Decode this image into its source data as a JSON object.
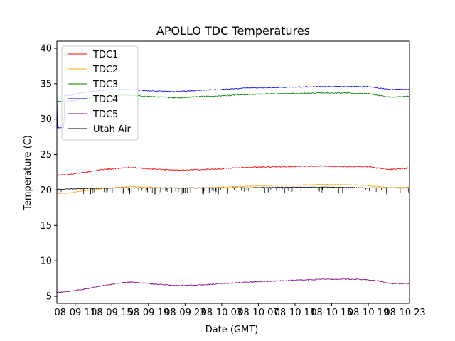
{
  "chart_data": {
    "type": "line",
    "title": "APOLLO TDC Temperatures",
    "xlabel": "Date (GMT)",
    "ylabel": "Temperature (C)",
    "xlim": [
      0,
      38.5
    ],
    "ylim": [
      4,
      41
    ],
    "x_tick_values": [
      2,
      6,
      10,
      14,
      18,
      22,
      26,
      30,
      34,
      38
    ],
    "x_tick_labels": [
      "08-09 11",
      "08-09 15",
      "08-09 19",
      "08-09 23",
      "08-10 03",
      "08-10 07",
      "08-10 11",
      "08-10 15",
      "08-10 19",
      "08-10 23"
    ],
    "y_ticks": [
      5,
      10,
      15,
      20,
      25,
      30,
      35,
      40
    ],
    "grid": false,
    "legend_position": "upper-left",
    "series": [
      {
        "name": "TDC1",
        "color": "#ff0000",
        "noise": 0.08,
        "points": [
          [
            0,
            22.1
          ],
          [
            1.5,
            22.2
          ],
          [
            3,
            22.5
          ],
          [
            5,
            22.9
          ],
          [
            7,
            23.1
          ],
          [
            8,
            23.2
          ],
          [
            10,
            23.0
          ],
          [
            13,
            22.8
          ],
          [
            16,
            22.9
          ],
          [
            18,
            23.0
          ],
          [
            21,
            23.2
          ],
          [
            25,
            23.3
          ],
          [
            27,
            23.35
          ],
          [
            29,
            23.4
          ],
          [
            31,
            23.3
          ],
          [
            32,
            23.3
          ],
          [
            34,
            23.3
          ],
          [
            35,
            23.1
          ],
          [
            36.5,
            22.9
          ],
          [
            38.5,
            23.1
          ]
        ]
      },
      {
        "name": "TDC2",
        "color": "#ffa500",
        "noise": 0.05,
        "points": [
          [
            0,
            19.5
          ],
          [
            1.5,
            19.6
          ],
          [
            3,
            19.9
          ],
          [
            5,
            20.2
          ],
          [
            7,
            20.4
          ],
          [
            8,
            20.5
          ],
          [
            10,
            20.4
          ],
          [
            12,
            20.3
          ],
          [
            15,
            20.25
          ],
          [
            18,
            20.4
          ],
          [
            22,
            20.6
          ],
          [
            26,
            20.7
          ],
          [
            29,
            20.8
          ],
          [
            31,
            20.75
          ],
          [
            33,
            20.7
          ],
          [
            35,
            20.5
          ],
          [
            36.5,
            20.3
          ],
          [
            38.5,
            20.4
          ]
        ]
      },
      {
        "name": "TDC3",
        "color": "#008000",
        "noise": 0.08,
        "points": [
          [
            0,
            32.5
          ],
          [
            1.5,
            32.5
          ],
          [
            3,
            32.9
          ],
          [
            5,
            33.2
          ],
          [
            7,
            33.4
          ],
          [
            8,
            33.4
          ],
          [
            10,
            33.2
          ],
          [
            13,
            33.0
          ],
          [
            16,
            33.2
          ],
          [
            18,
            33.3
          ],
          [
            21,
            33.5
          ],
          [
            25,
            33.6
          ],
          [
            29,
            33.7
          ],
          [
            32,
            33.7
          ],
          [
            34,
            33.6
          ],
          [
            35,
            33.4
          ],
          [
            36.5,
            33.1
          ],
          [
            38.5,
            33.2
          ]
        ]
      },
      {
        "name": "TDC4",
        "color": "#0000ff",
        "noise": 0.06,
        "points": [
          [
            0,
            33.2
          ],
          [
            0.05,
            28.8
          ],
          [
            0.8,
            28.8
          ],
          [
            0.82,
            33.3
          ],
          [
            1.5,
            33.4
          ],
          [
            3,
            33.8
          ],
          [
            5,
            34.1
          ],
          [
            7,
            34.2
          ],
          [
            8,
            34.2
          ],
          [
            10,
            34.0
          ],
          [
            13,
            33.9
          ],
          [
            16,
            34.1
          ],
          [
            18,
            34.2
          ],
          [
            21,
            34.4
          ],
          [
            25,
            34.5
          ],
          [
            29,
            34.6
          ],
          [
            32,
            34.6
          ],
          [
            34,
            34.6
          ],
          [
            35,
            34.4
          ],
          [
            36.5,
            34.2
          ],
          [
            38.5,
            34.2
          ]
        ]
      },
      {
        "name": "TDC5",
        "color": "#800080",
        "noise": 0.07,
        "points": [
          [
            0,
            5.5
          ],
          [
            1.5,
            5.7
          ],
          [
            3,
            6.0
          ],
          [
            5,
            6.5
          ],
          [
            7,
            6.9
          ],
          [
            8,
            7.0
          ],
          [
            10,
            6.8
          ],
          [
            13,
            6.5
          ],
          [
            16,
            6.6
          ],
          [
            18,
            6.8
          ],
          [
            21,
            7.0
          ],
          [
            25,
            7.2
          ],
          [
            29,
            7.4
          ],
          [
            31,
            7.4
          ],
          [
            33,
            7.4
          ],
          [
            35,
            7.2
          ],
          [
            36.5,
            6.8
          ],
          [
            38.5,
            6.8
          ]
        ]
      },
      {
        "name": "Utah Air",
        "color": "#000000",
        "noise": 0.05,
        "spikes": true,
        "points": [
          [
            0,
            20.1
          ],
          [
            3,
            20.2
          ],
          [
            6,
            20.3
          ],
          [
            9,
            20.3
          ],
          [
            14,
            20.3
          ],
          [
            18,
            20.3
          ],
          [
            22,
            20.35
          ],
          [
            26,
            20.4
          ],
          [
            30,
            20.4
          ],
          [
            34,
            20.3
          ],
          [
            38.5,
            20.3
          ]
        ]
      }
    ]
  }
}
